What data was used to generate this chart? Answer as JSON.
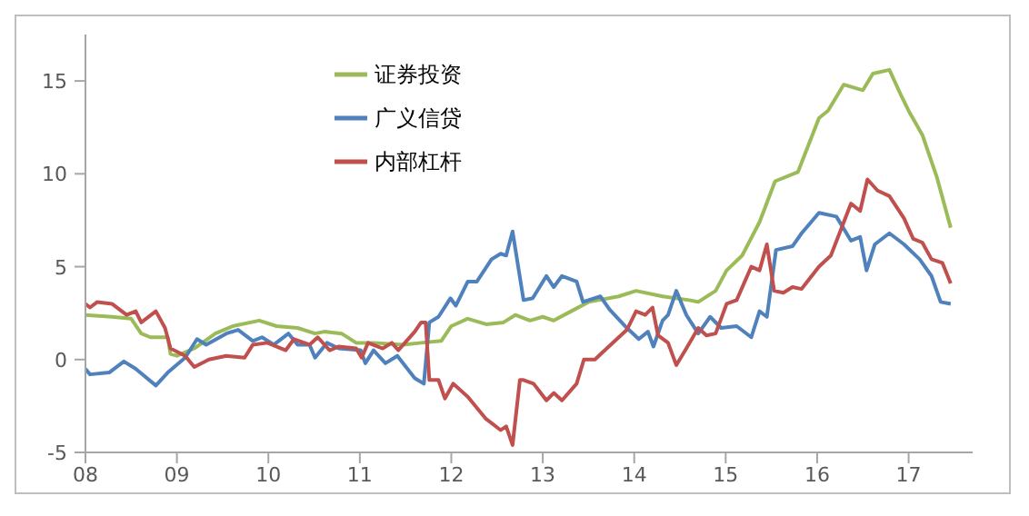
{
  "chart_data": {
    "type": "line",
    "xlim": [
      2008,
      2017.7
    ],
    "xticks": [
      {
        "value": 2008,
        "label": "08"
      },
      {
        "value": 2009,
        "label": "09"
      },
      {
        "value": 2010,
        "label": "10"
      },
      {
        "value": 2011,
        "label": "11"
      },
      {
        "value": 2012,
        "label": "12"
      },
      {
        "value": 2013,
        "label": "13"
      },
      {
        "value": 2014,
        "label": "14"
      },
      {
        "value": 2015,
        "label": "15"
      },
      {
        "value": 2016,
        "label": "16"
      },
      {
        "value": 2017,
        "label": "17"
      }
    ],
    "ylim": [
      -5,
      17.5
    ],
    "yticks": [
      -5,
      0,
      5,
      10,
      15
    ],
    "grid": false,
    "legend": "top",
    "marker": "none",
    "line_style": "solid",
    "series": [
      {
        "name": "证券投资",
        "color": "#9bbb59",
        "x": [
          2008.0,
          2008.29,
          2008.5,
          2008.61,
          2008.71,
          2008.9,
          2008.93,
          2009.0,
          2009.19,
          2009.42,
          2009.61,
          2009.9,
          2010.09,
          2010.32,
          2010.51,
          2010.61,
          2010.8,
          2010.96,
          2011.15,
          2011.47,
          2011.67,
          2011.89,
          2012.0,
          2012.18,
          2012.38,
          2012.57,
          2012.7,
          2012.86,
          2013.0,
          2013.12,
          2013.31,
          2013.5,
          2013.83,
          2014.02,
          2014.31,
          2014.6,
          2014.7,
          2014.89,
          2015.01,
          2015.18,
          2015.37,
          2015.54,
          2015.79,
          2016.02,
          2016.12,
          2016.29,
          2016.5,
          2016.61,
          2016.79,
          2016.92,
          2017.01,
          2017.15,
          2017.31,
          2017.46
        ],
        "values": [
          2.4,
          2.3,
          2.2,
          1.4,
          1.2,
          1.2,
          0.3,
          0.2,
          0.6,
          1.4,
          1.8,
          2.1,
          1.8,
          1.7,
          1.4,
          1.5,
          1.4,
          0.9,
          0.9,
          0.8,
          0.9,
          1.0,
          1.8,
          2.2,
          1.9,
          2.0,
          2.4,
          2.1,
          2.3,
          2.1,
          2.6,
          3.1,
          3.4,
          3.7,
          3.4,
          3.2,
          3.1,
          3.7,
          4.8,
          5.6,
          7.4,
          9.6,
          10.1,
          13.0,
          13.4,
          14.8,
          14.5,
          15.4,
          15.6,
          14.2,
          13.3,
          12.1,
          9.8,
          7.1
        ]
      },
      {
        "name": "广义信贷",
        "color": "#4f81bd",
        "x": [
          2008.0,
          2008.05,
          2008.26,
          2008.42,
          2008.55,
          2008.77,
          2008.9,
          2009.09,
          2009.22,
          2009.32,
          2009.54,
          2009.67,
          2009.83,
          2009.93,
          2010.06,
          2010.22,
          2010.32,
          2010.45,
          2010.51,
          2010.64,
          2010.77,
          2011.01,
          2011.06,
          2011.15,
          2011.28,
          2011.41,
          2011.6,
          2011.7,
          2011.76,
          2011.86,
          2011.99,
          2012.05,
          2012.18,
          2012.28,
          2012.44,
          2012.54,
          2012.6,
          2012.67,
          2012.79,
          2012.89,
          2013.04,
          2013.12,
          2013.21,
          2013.37,
          2013.44,
          2013.63,
          2013.73,
          2013.92,
          2014.05,
          2014.15,
          2014.21,
          2014.31,
          2014.37,
          2014.46,
          2014.57,
          2014.7,
          2014.83,
          2014.95,
          2015.12,
          2015.28,
          2015.37,
          2015.45,
          2015.55,
          2015.73,
          2015.83,
          2016.02,
          2016.21,
          2016.37,
          2016.47,
          2016.54,
          2016.63,
          2016.79,
          2016.95,
          2017.12,
          2017.25,
          2017.35,
          2017.46
        ],
        "values": [
          -0.5,
          -0.8,
          -0.7,
          -0.1,
          -0.5,
          -1.4,
          -0.7,
          0.1,
          1.1,
          0.8,
          1.4,
          1.6,
          1.0,
          1.2,
          0.8,
          1.4,
          0.8,
          0.8,
          0.1,
          0.9,
          0.6,
          0.5,
          -0.2,
          0.5,
          -0.2,
          0.2,
          -1.0,
          -1.3,
          2.0,
          2.3,
          3.3,
          2.9,
          4.2,
          4.2,
          5.4,
          5.7,
          5.6,
          6.9,
          3.2,
          3.3,
          4.5,
          3.9,
          4.5,
          4.2,
          3.1,
          3.4,
          2.7,
          1.7,
          1.1,
          1.5,
          0.7,
          2.1,
          2.4,
          3.7,
          2.4,
          1.4,
          2.3,
          1.7,
          1.8,
          1.2,
          2.6,
          2.3,
          5.9,
          6.1,
          6.8,
          7.9,
          7.7,
          6.4,
          6.6,
          4.8,
          6.2,
          6.8,
          6.2,
          5.4,
          4.5,
          3.1,
          3.0
        ]
      },
      {
        "name": "内部杠杆",
        "color": "#c0504d",
        "x": [
          2008.0,
          2008.05,
          2008.13,
          2008.29,
          2008.45,
          2008.55,
          2008.61,
          2008.77,
          2008.87,
          2008.93,
          2009.09,
          2009.19,
          2009.35,
          2009.54,
          2009.74,
          2009.83,
          2009.99,
          2010.19,
          2010.28,
          2010.45,
          2010.54,
          2010.67,
          2010.77,
          2010.96,
          2011.02,
          2011.09,
          2011.25,
          2011.35,
          2011.42,
          2011.6,
          2011.67,
          2011.72,
          2011.76,
          2011.86,
          2011.93,
          2012.02,
          2012.18,
          2012.38,
          2012.54,
          2012.6,
          2012.67,
          2012.75,
          2012.79,
          2012.9,
          2013.04,
          2013.12,
          2013.21,
          2013.37,
          2013.45,
          2013.57,
          2013.7,
          2013.92,
          2014.02,
          2014.12,
          2014.2,
          2014.26,
          2014.37,
          2014.46,
          2014.57,
          2014.7,
          2014.79,
          2014.89,
          2015.01,
          2015.12,
          2015.28,
          2015.37,
          2015.45,
          2015.53,
          2015.63,
          2015.73,
          2015.83,
          2016.02,
          2016.15,
          2016.37,
          2016.47,
          2016.55,
          2016.66,
          2016.79,
          2016.95,
          2017.05,
          2017.15,
          2017.25,
          2017.37,
          2017.46
        ],
        "values": [
          3.0,
          2.8,
          3.1,
          3.0,
          2.4,
          2.6,
          2.0,
          2.6,
          1.7,
          0.6,
          0.2,
          -0.4,
          0.0,
          0.2,
          0.1,
          0.8,
          0.9,
          0.5,
          1.1,
          0.8,
          1.2,
          0.5,
          0.7,
          0.6,
          0.1,
          0.9,
          0.6,
          0.9,
          0.5,
          1.5,
          2.0,
          2.0,
          -1.1,
          -1.1,
          -2.1,
          -1.3,
          -2.0,
          -3.2,
          -3.8,
          -3.6,
          -4.6,
          -1.1,
          -1.1,
          -1.3,
          -2.2,
          -1.8,
          -2.2,
          -1.3,
          0.0,
          0.0,
          0.6,
          1.6,
          2.6,
          2.4,
          2.8,
          1.3,
          0.9,
          -0.3,
          0.6,
          1.7,
          1.3,
          1.4,
          3.0,
          3.2,
          5.0,
          4.8,
          6.2,
          3.7,
          3.6,
          3.9,
          3.8,
          5.0,
          5.6,
          8.4,
          8.0,
          9.7,
          9.1,
          8.8,
          7.6,
          6.5,
          6.3,
          5.4,
          5.2,
          4.1
        ]
      }
    ]
  }
}
